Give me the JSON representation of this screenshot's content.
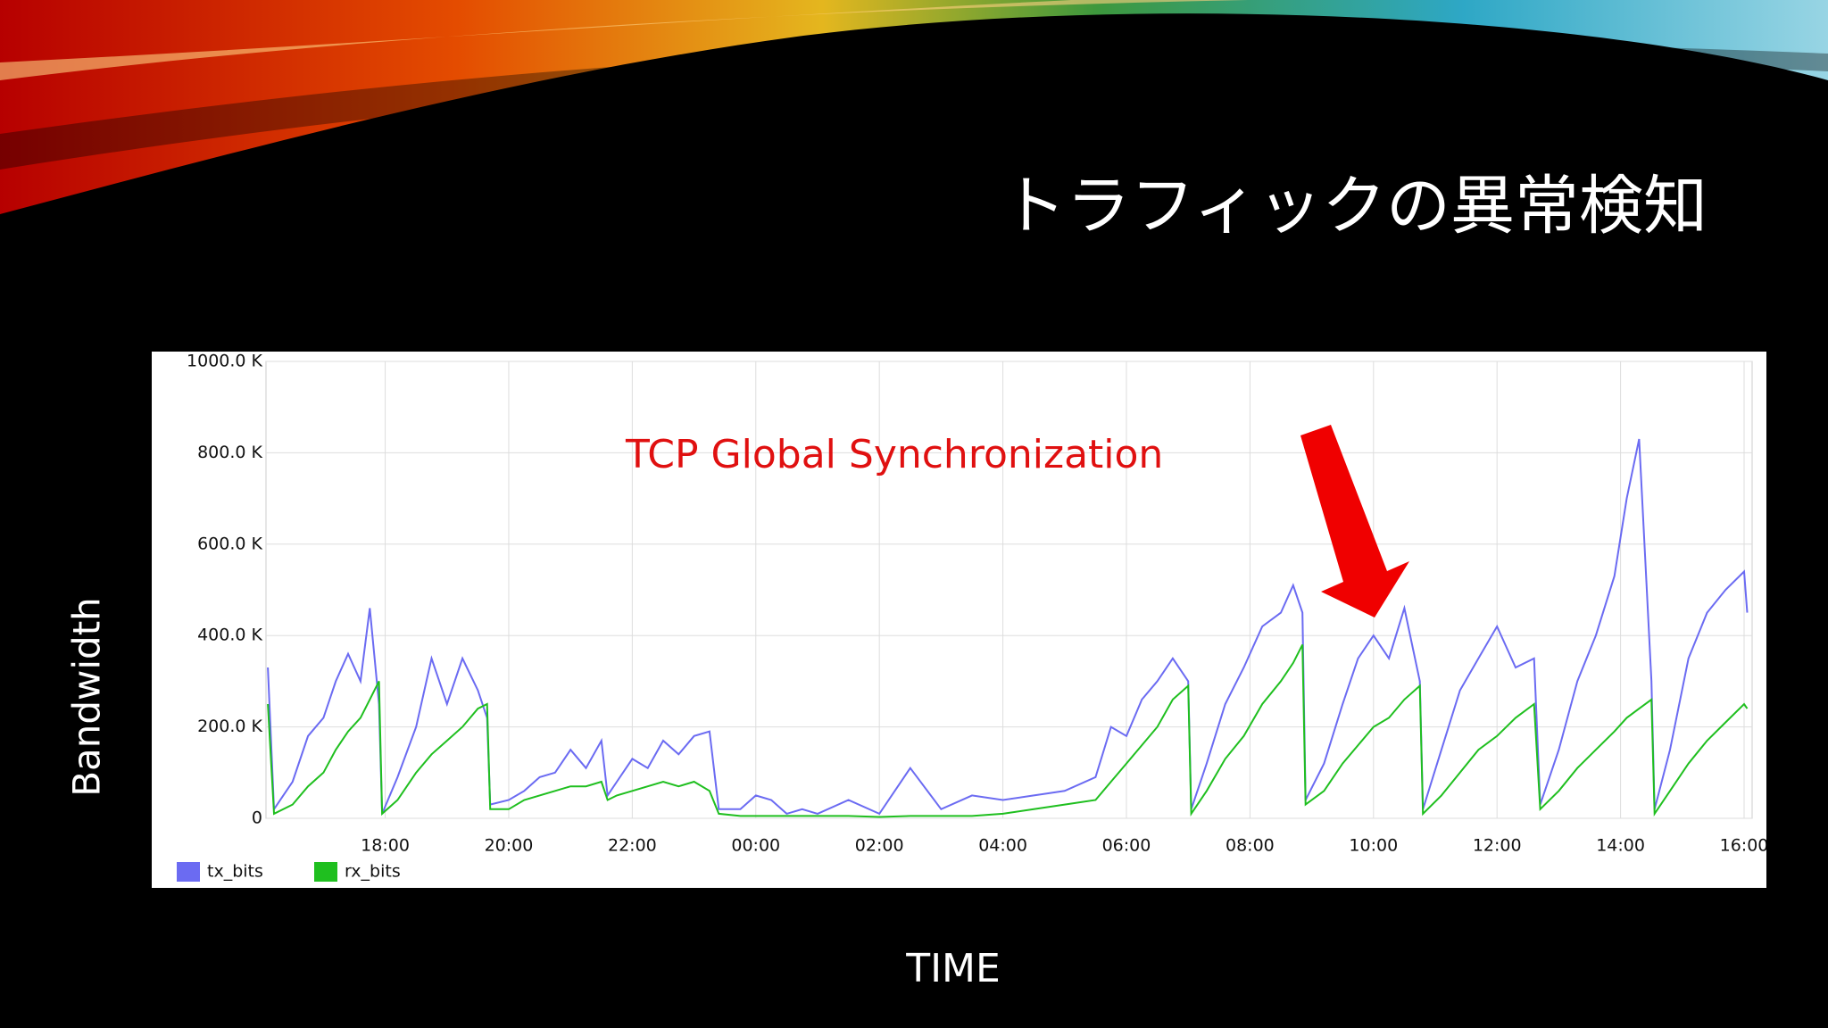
{
  "slide_title": "トラフィックの異常検知",
  "y_axis_title": "Bandwidth",
  "x_axis_title": "TIME",
  "chart_data": {
    "type": "line",
    "annotation": "TCP Global Synchronization",
    "x": [
      16.1,
      16.2,
      16.5,
      16.75,
      17.0,
      17.2,
      17.4,
      17.6,
      17.75,
      17.9,
      17.95,
      18.2,
      18.5,
      18.75,
      19.0,
      19.25,
      19.5,
      19.65,
      19.7,
      20.0,
      20.25,
      20.5,
      20.75,
      21.0,
      21.25,
      21.5,
      21.6,
      21.75,
      22.0,
      22.25,
      22.5,
      22.75,
      23.0,
      23.25,
      23.4,
      23.75,
      24.0,
      24.25,
      24.5,
      24.75,
      25.0,
      25.5,
      26.0,
      26.5,
      27.0,
      27.5,
      28.0,
      28.5,
      29.0,
      29.5,
      29.75,
      30.0,
      30.25,
      30.5,
      30.75,
      31.0,
      31.05,
      31.3,
      31.6,
      31.9,
      32.2,
      32.5,
      32.7,
      32.85,
      32.9,
      33.2,
      33.5,
      33.75,
      34.0,
      34.25,
      34.5,
      34.75,
      34.8,
      35.1,
      35.4,
      35.7,
      36.0,
      36.3,
      36.6,
      36.7,
      37.0,
      37.3,
      37.6,
      37.9,
      38.1,
      38.3,
      38.5,
      38.55,
      38.8,
      39.1,
      39.4,
      39.7,
      40.0,
      40.05
    ],
    "series": [
      {
        "name": "tx_bits",
        "color": "#6b6bf2",
        "values": [
          330,
          20,
          80,
          180,
          220,
          300,
          360,
          300,
          460,
          250,
          10,
          90,
          200,
          350,
          250,
          350,
          280,
          220,
          30,
          40,
          60,
          90,
          100,
          150,
          110,
          170,
          50,
          80,
          130,
          110,
          170,
          140,
          180,
          190,
          20,
          20,
          50,
          40,
          10,
          20,
          10,
          40,
          10,
          110,
          20,
          50,
          40,
          50,
          60,
          90,
          200,
          180,
          260,
          300,
          350,
          300,
          20,
          120,
          250,
          330,
          420,
          450,
          510,
          450,
          40,
          120,
          250,
          350,
          400,
          350,
          460,
          300,
          20,
          150,
          280,
          350,
          420,
          330,
          350,
          30,
          150,
          300,
          400,
          530,
          700,
          830,
          300,
          20,
          150,
          350,
          450,
          500,
          540,
          450
        ]
      },
      {
        "name": "rx_bits",
        "color": "#1fbf1f",
        "values": [
          250,
          10,
          30,
          70,
          100,
          150,
          190,
          220,
          260,
          300,
          10,
          40,
          100,
          140,
          170,
          200,
          240,
          250,
          20,
          20,
          40,
          50,
          60,
          70,
          70,
          80,
          40,
          50,
          60,
          70,
          80,
          70,
          80,
          60,
          10,
          5,
          5,
          5,
          5,
          5,
          5,
          5,
          3,
          5,
          5,
          5,
          10,
          20,
          30,
          40,
          80,
          120,
          160,
          200,
          260,
          290,
          10,
          60,
          130,
          180,
          250,
          300,
          340,
          380,
          30,
          60,
          120,
          160,
          200,
          220,
          260,
          290,
          10,
          50,
          100,
          150,
          180,
          220,
          250,
          20,
          60,
          110,
          150,
          190,
          220,
          240,
          260,
          10,
          60,
          120,
          170,
          210,
          250,
          240
        ]
      }
    ],
    "xlim": [
      16.07,
      40.13
    ],
    "ylim": [
      0,
      1000
    ],
    "xticks": [
      {
        "value": 18,
        "label": "18:00"
      },
      {
        "value": 20,
        "label": "20:00"
      },
      {
        "value": 22,
        "label": "22:00"
      },
      {
        "value": 24,
        "label": "00:00"
      },
      {
        "value": 26,
        "label": "02:00"
      },
      {
        "value": 28,
        "label": "04:00"
      },
      {
        "value": 30,
        "label": "06:00"
      },
      {
        "value": 32,
        "label": "08:00"
      },
      {
        "value": 34,
        "label": "10:00"
      },
      {
        "value": 36,
        "label": "12:00"
      },
      {
        "value": 38,
        "label": "14:00"
      },
      {
        "value": 40,
        "label": "16:00"
      }
    ],
    "yticks": [
      0,
      {
        "value": 200,
        "label": "200.0 K"
      },
      {
        "value": 400,
        "label": "400.0 K"
      },
      {
        "value": 600,
        "label": "600.0 K"
      },
      {
        "value": 800,
        "label": "800.0 K"
      },
      {
        "value": 1000,
        "label": "1000.0 K"
      }
    ],
    "grid": true
  }
}
